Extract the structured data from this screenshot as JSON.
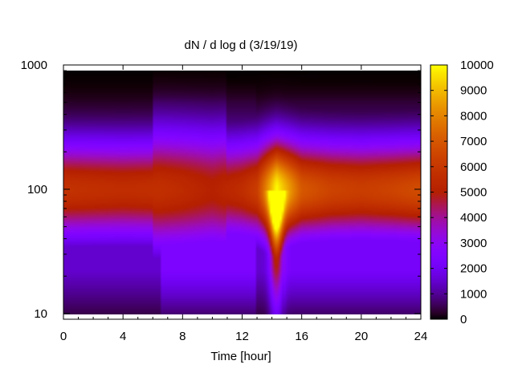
{
  "chart_data": {
    "type": "heatmap",
    "title": "dN / d log d (3/19/19)",
    "xlabel": "Time [hour]",
    "ylabel": "",
    "xlim": [
      0,
      24
    ],
    "ylim": [
      9,
      1000
    ],
    "y_scale": "log",
    "x_ticks": [
      "0",
      "4",
      "8",
      "12",
      "16",
      "20",
      "24"
    ],
    "y_ticks": [
      "10",
      "100",
      "1000"
    ],
    "colorbar": {
      "range": [
        0,
        10000
      ],
      "ticks": [
        "0",
        "1000",
        "2000",
        "3000",
        "4000",
        "5000",
        "6000",
        "7000",
        "8000",
        "9000",
        "10000"
      ],
      "palette": "black-purple-red-orange-yellow"
    },
    "data_y_extent": [
      10,
      900
    ],
    "grid": false,
    "description_of_field": {
      "peak_center_diameter": 100,
      "band_values_at_d100": [
        {
          "t": 0,
          "value": 5800
        },
        {
          "t": 4,
          "value": 5600
        },
        {
          "t": 6.5,
          "value": 5700
        },
        {
          "t": 8,
          "value": 5500
        },
        {
          "t": 10,
          "value": 5100
        },
        {
          "t": 12,
          "value": 5600
        },
        {
          "t": 13,
          "value": 6200
        },
        {
          "t": 14.3,
          "value": 10000
        },
        {
          "t": 16,
          "value": 7000
        },
        {
          "t": 18,
          "value": 6400
        },
        {
          "t": 20,
          "value": 6200
        },
        {
          "t": 22,
          "value": 6400
        },
        {
          "t": 24,
          "value": 6700
        }
      ]
    }
  }
}
